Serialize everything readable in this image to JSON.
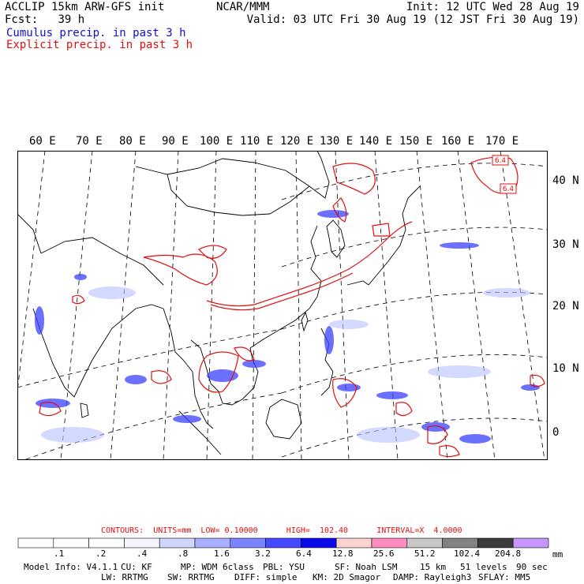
{
  "header": {
    "model_line": "ACCLIP 15km ARW-GFS init",
    "fcst_label": "Fcst:",
    "fcst_value": "39 h",
    "center": "NCAR/MMM",
    "init": "Init: 12 UTC Wed 28 Aug 19",
    "valid": "Valid: 03 UTC Fri 30 Aug 19 (12 JST Fri 30 Aug 19)"
  },
  "legend": {
    "cumulus": "Cumulus precip. in past 3 h",
    "explicit": "Explicit precip. in past 3 h",
    "cumulus_color": "#1010c8",
    "explicit_color": "#e01010"
  },
  "map": {
    "lon_labels": [
      "60 E",
      "70 E",
      "80 E",
      "90 E",
      "100 E",
      "110 E",
      "120 E",
      "130 E",
      "140 E",
      "150 E",
      "160 E",
      "170 E"
    ],
    "lat_labels": [
      "40 N",
      "30 N",
      "20 N",
      "10 N",
      "0"
    ],
    "box_labels": [
      "6.4",
      "6.4"
    ]
  },
  "contours": {
    "text": "CONTOURS:  UNITS=mm  LOW= 0.10000      HIGH=  102.40      INTERVAL=X  4.0000"
  },
  "colorbar": {
    "labels": [
      ".1",
      ".2",
      ".4",
      ".8",
      "1.6",
      "3.2",
      "6.4",
      "12.8",
      "25.6",
      "51.2",
      "102.4",
      "204.8"
    ],
    "unit": "mm",
    "colors": [
      "#ffffff",
      "#ffffff",
      "#ffffff",
      "#f4f4ff",
      "#d0d8ff",
      "#a8b0ff",
      "#7c84ff",
      "#4448ff",
      "#0a0ae6",
      "#ffd2d2",
      "#ff8cc0",
      "#c8c8c8",
      "#828282",
      "#3c3c3c",
      "#c896ff"
    ]
  },
  "model_info": {
    "line1": [
      "Model Info: V4.1.1",
      "CU: KF",
      "MP: WDM 6class",
      "PBL: YSU",
      "SF: Noah LSM",
      "15 km",
      "51 levels",
      "90 sec"
    ],
    "line2": [
      "LW: RRTMG",
      "SW: RRTMG",
      "DIFF: simple",
      "KM: 2D Smagor",
      "DAMP: Rayleigh3",
      "SFLAY: MM5"
    ]
  }
}
